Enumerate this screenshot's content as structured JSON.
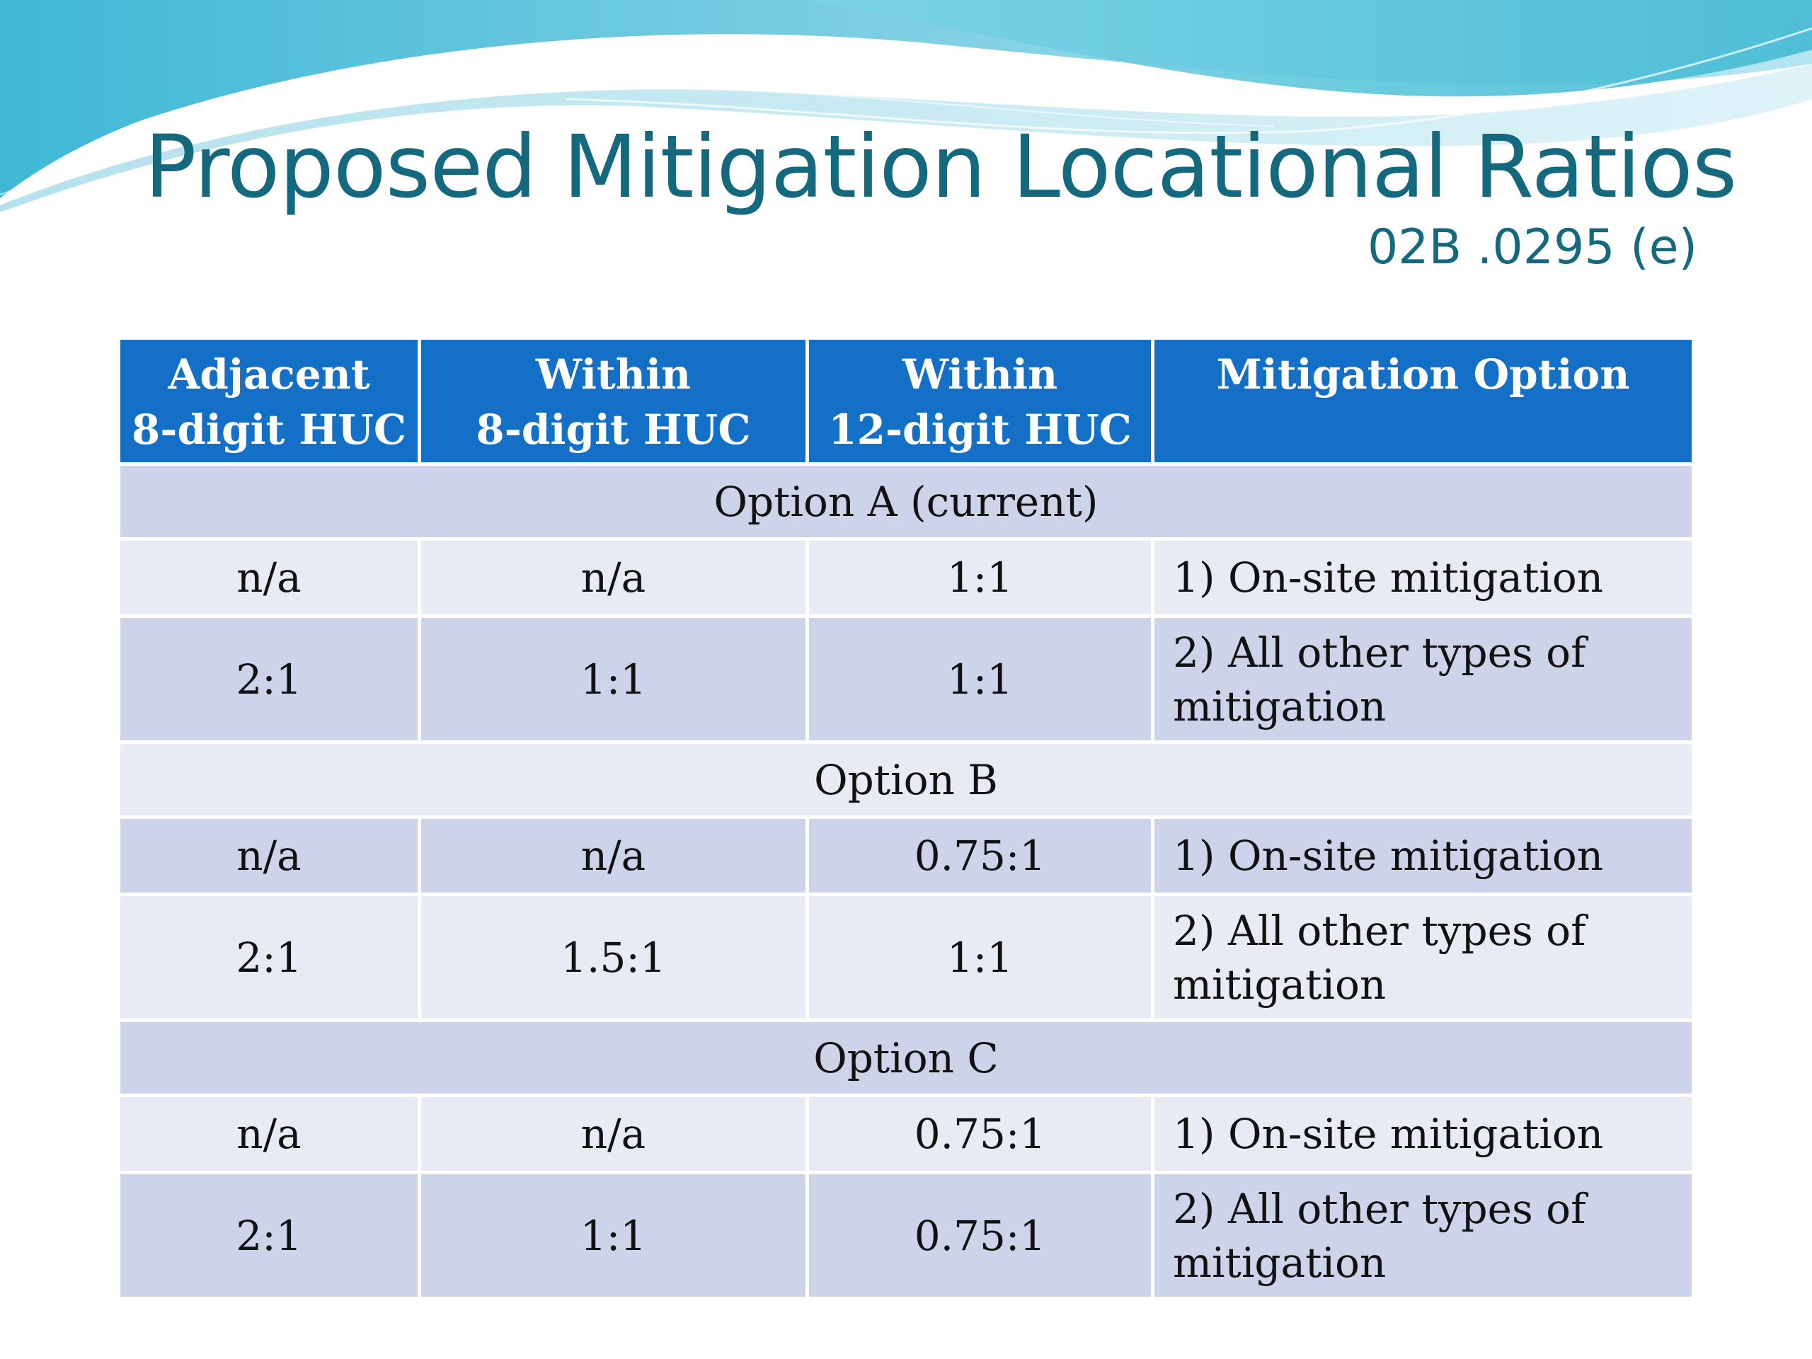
{
  "slide": {
    "title": "Proposed Mitigation Locational Ratios",
    "subtitle": "02B .0295 (e)"
  },
  "table": {
    "headers": [
      [
        "Adjacent",
        "8-digit HUC"
      ],
      [
        "Within",
        "8-digit HUC"
      ],
      [
        "Within",
        "12-digit HUC"
      ],
      [
        "Mitigation Option",
        ""
      ]
    ],
    "groups": [
      {
        "label": "Option A (current)",
        "rows": [
          [
            "n/a",
            "n/a",
            "1:1",
            "1) On-site mitigation",
            ""
          ],
          [
            "2:1",
            "1:1",
            "1:1",
            "2) All other types of",
            "mitigation"
          ]
        ]
      },
      {
        "label": "Option B",
        "rows": [
          [
            "n/a",
            "n/a",
            "0.75:1",
            "1) On-site mitigation",
            ""
          ],
          [
            "2:1",
            "1.5:1",
            "1:1",
            "2) All other types of",
            "mitigation"
          ]
        ]
      },
      {
        "label": "Option C",
        "rows": [
          [
            "n/a",
            "n/a",
            "0.75:1",
            "1) On-site mitigation",
            ""
          ],
          [
            "2:1",
            "1:1",
            "0.75:1",
            "2) All other types of",
            "mitigation"
          ]
        ]
      }
    ]
  },
  "colors": {
    "title": "#14697f",
    "header_bg": "#1470c6",
    "row_dark": "#cdd4e9",
    "row_light": "#e8ebf4"
  }
}
